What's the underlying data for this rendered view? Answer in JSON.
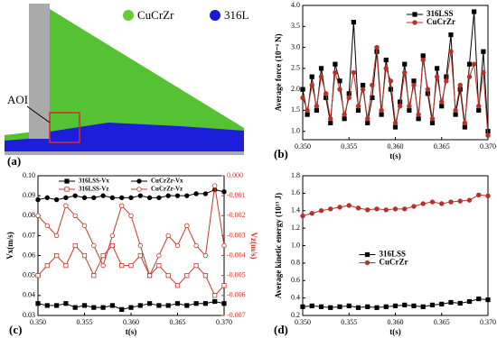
{
  "image_panel": {
    "panel_label": "(a)",
    "legend": [
      {
        "name": "CuCrZr",
        "color": "#66cc33"
      },
      {
        "name": "316L",
        "color": "#1a1ad6"
      }
    ],
    "annotation": "AOI"
  },
  "chart_data": [
    {
      "type": "line",
      "panel_label": "(b)",
      "xlabel": "t(s)",
      "ylabel": "Average force (10⁻⁴ N)",
      "legend": "upper right",
      "xlim": [
        0.35,
        0.37
      ],
      "xticks": [
        {
          "value": 0.35,
          "label": "0.350"
        },
        {
          "value": 0.355,
          "label": "0.355"
        },
        {
          "value": 0.36,
          "label": "0.360"
        },
        {
          "value": 0.365,
          "label": "0.365"
        },
        {
          "value": 0.37,
          "label": "0.370"
        }
      ],
      "ylim": [
        0.8,
        4.0
      ],
      "yticks": [
        {
          "value": 1,
          "label": "1.0"
        },
        1.5,
        {
          "value": 2,
          "label": "2.0"
        },
        2.5,
        {
          "value": 3,
          "label": "3.0"
        },
        3.5,
        {
          "value": 4,
          "label": "4.0"
        }
      ],
      "x": [
        0.35,
        0.3505,
        0.351,
        0.3515,
        0.352,
        0.3525,
        0.353,
        0.3535,
        0.354,
        0.3545,
        0.355,
        0.3555,
        0.356,
        0.3565,
        0.357,
        0.3575,
        0.358,
        0.3585,
        0.359,
        0.3595,
        0.36,
        0.3605,
        0.361,
        0.3615,
        0.362,
        0.3625,
        0.363,
        0.3635,
        0.364,
        0.3645,
        0.365,
        0.3655,
        0.366,
        0.3665,
        0.367,
        0.3675,
        0.368,
        0.3685,
        0.369,
        0.3695,
        0.37
      ],
      "series": [
        {
          "name": "316LSS",
          "color": "#000000",
          "marker": "square",
          "values": [
            2.0,
            1.4,
            2.3,
            1.5,
            2.5,
            1.8,
            1.2,
            2.6,
            2.2,
            1.3,
            1.9,
            3.6,
            1.5,
            2.1,
            1.2,
            1.8,
            2.9,
            1.4,
            2.7,
            2.0,
            1.1,
            1.7,
            2.6,
            1.5,
            2.2,
            1.3,
            2.8,
            1.9,
            1.2,
            2.5,
            1.6,
            2.3,
            3.3,
            1.4,
            2.0,
            1.1,
            2.6,
            3.85,
            1.5,
            2.9,
            1.0
          ]
        },
        {
          "name": "CuCrZr",
          "color": "#b5322a",
          "marker": "circle",
          "values": [
            1.8,
            1.5,
            2.1,
            1.6,
            2.3,
            1.9,
            1.3,
            2.4,
            2.0,
            1.4,
            1.8,
            2.4,
            1.6,
            2.0,
            1.3,
            2.1,
            3.0,
            1.5,
            2.5,
            2.2,
            1.2,
            1.6,
            2.4,
            1.6,
            2.1,
            1.4,
            2.7,
            2.0,
            1.3,
            2.3,
            1.7,
            2.2,
            2.9,
            1.5,
            2.1,
            1.2,
            2.3,
            2.6,
            1.6,
            2.4,
            0.9
          ]
        }
      ]
    },
    {
      "type": "line",
      "panel_label": "(c)",
      "xlabel": "t(s)",
      "ylabel": "Vx(m/s)",
      "y2label": "Vz(m/s)",
      "legend": "upper center",
      "xlim": [
        0.35,
        0.37
      ],
      "xticks": [
        {
          "value": 0.35,
          "label": "0.350"
        },
        {
          "value": 0.355,
          "label": "0.355"
        },
        {
          "value": 0.36,
          "label": "0.360"
        },
        {
          "value": 0.365,
          "label": "0.365"
        },
        {
          "value": 0.37,
          "label": "0.370"
        }
      ],
      "ylim": [
        0.03,
        0.1
      ],
      "yticks": [
        0.03,
        0.04,
        0.05,
        0.06,
        0.07,
        0.08,
        0.09,
        {
          "value": 0.1,
          "label": "0.10"
        }
      ],
      "y2lim": [
        -0.007,
        0
      ],
      "y2ticks": [
        {
          "value": 0,
          "label": "0.000"
        },
        -0.001,
        -0.002,
        -0.003,
        -0.004,
        -0.005,
        -0.006,
        -0.007
      ],
      "x": [
        0.35,
        0.351,
        0.352,
        0.353,
        0.354,
        0.355,
        0.356,
        0.357,
        0.358,
        0.359,
        0.36,
        0.361,
        0.362,
        0.363,
        0.364,
        0.365,
        0.366,
        0.367,
        0.368,
        0.369,
        0.37
      ],
      "series": [
        {
          "name": "316LSS-Vx",
          "color": "#000000",
          "marker": "square",
          "values": [
            0.036,
            0.035,
            0.035,
            0.036,
            0.034,
            0.035,
            0.034,
            0.034,
            0.035,
            0.033,
            0.034,
            0.035,
            0.036,
            0.035,
            0.035,
            0.036,
            0.035,
            0.036,
            0.036,
            0.037,
            0.036
          ]
        },
        {
          "name": "CuCrZr-Vx",
          "color": "#000000",
          "marker": "circle",
          "values": [
            0.088,
            0.089,
            0.088,
            0.089,
            0.09,
            0.089,
            0.089,
            0.09,
            0.089,
            0.089,
            0.089,
            0.09,
            0.089,
            0.089,
            0.09,
            0.09,
            0.09,
            0.091,
            0.091,
            0.093,
            0.092
          ]
        },
        {
          "name": "316LSS-Vz",
          "color": "#c0392b",
          "marker": "open-square",
          "axis": "y2",
          "values": [
            -0.005,
            -0.0045,
            -0.004,
            -0.0045,
            -0.0035,
            -0.004,
            -0.005,
            -0.004,
            -0.0035,
            -0.0045,
            -0.0045,
            -0.004,
            -0.005,
            -0.0045,
            -0.005,
            -0.0055,
            -0.005,
            -0.0045,
            -0.005,
            -0.006,
            -0.0055
          ]
        },
        {
          "name": "CuCrZr-Vz",
          "color": "#c0392b",
          "marker": "open-circle",
          "axis": "y2",
          "values": [
            -0.002,
            -0.0025,
            -0.003,
            -0.0015,
            -0.002,
            -0.0025,
            -0.0035,
            -0.0045,
            -0.003,
            -0.0015,
            -0.002,
            -0.0035,
            -0.005,
            -0.004,
            -0.003,
            -0.0035,
            -0.0025,
            -0.0035,
            -0.004,
            -0.0005,
            -0.0035
          ]
        }
      ]
    },
    {
      "type": "line",
      "panel_label": "(d)",
      "xlabel": "t(s)",
      "ylabel": "Average kinetic energy (10¹³ J)",
      "legend": "center",
      "xlim": [
        0.35,
        0.37
      ],
      "xticks": [
        {
          "value": 0.35,
          "label": "0.350"
        },
        {
          "value": 0.355,
          "label": "0.355"
        },
        {
          "value": 0.36,
          "label": "0.360"
        },
        {
          "value": 0.365,
          "label": "0.365"
        },
        {
          "value": 0.37,
          "label": "0.370"
        }
      ],
      "ylim": [
        0.2,
        1.8
      ],
      "yticks": [
        0.2,
        0.4,
        0.6,
        0.8,
        {
          "value": 1,
          "label": "1.0"
        },
        1.2,
        1.4,
        1.6,
        1.8
      ],
      "x": [
        0.35,
        0.351,
        0.352,
        0.353,
        0.354,
        0.355,
        0.356,
        0.357,
        0.358,
        0.359,
        0.36,
        0.361,
        0.362,
        0.363,
        0.364,
        0.365,
        0.366,
        0.367,
        0.368,
        0.369,
        0.37
      ],
      "series": [
        {
          "name": "316LSS",
          "color": "#000000",
          "marker": "square",
          "values": [
            0.3,
            0.31,
            0.3,
            0.29,
            0.3,
            0.31,
            0.29,
            0.3,
            0.29,
            0.3,
            0.31,
            0.32,
            0.31,
            0.3,
            0.32,
            0.33,
            0.35,
            0.34,
            0.36,
            0.39,
            0.38
          ]
        },
        {
          "name": "CuCrZr",
          "color": "#b5322a",
          "marker": "circle",
          "values": [
            1.34,
            1.37,
            1.4,
            1.42,
            1.44,
            1.46,
            1.43,
            1.41,
            1.42,
            1.41,
            1.42,
            1.42,
            1.45,
            1.48,
            1.5,
            1.48,
            1.5,
            1.51,
            1.52,
            1.58,
            1.57
          ]
        }
      ]
    }
  ]
}
